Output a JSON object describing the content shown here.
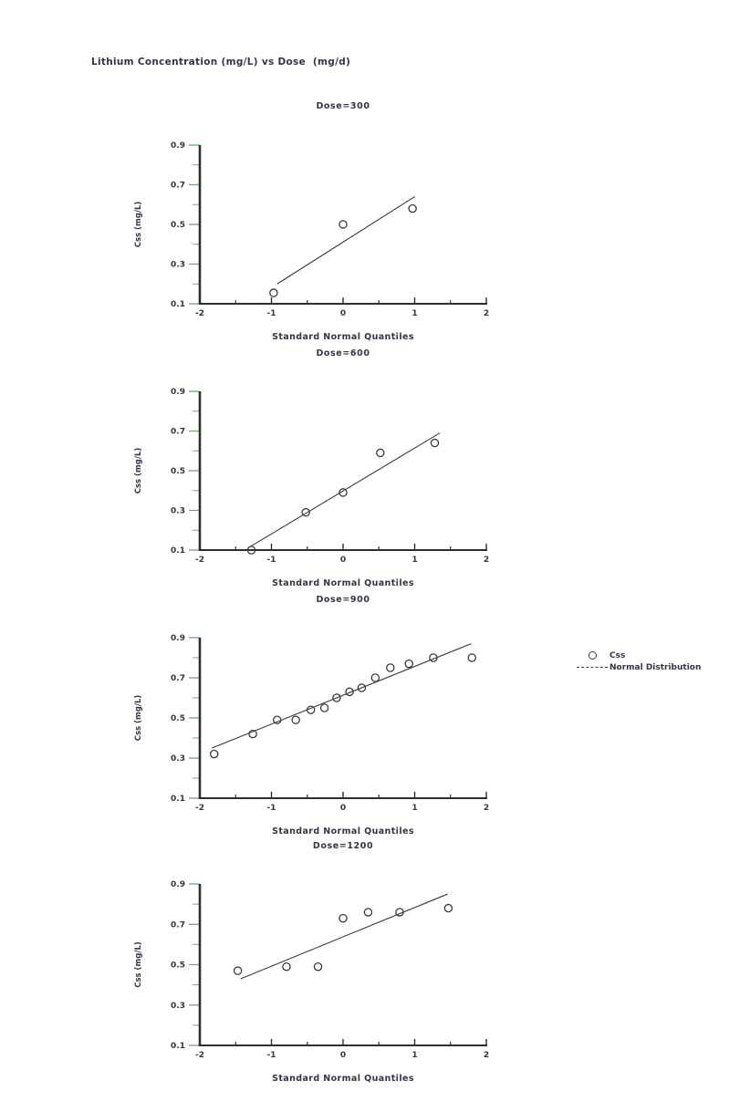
{
  "page": {
    "title": "Lithium Concentration (mg/L) vs Dose  (mg/d)"
  },
  "legend": {
    "items": [
      {
        "marker": "open-circle",
        "label": "Css"
      },
      {
        "marker": "dashed-line",
        "label": "Normal Distribution"
      }
    ]
  },
  "axes": {
    "xlabel": "Standard Normal Quantiles",
    "ylabel": "Css (mg/L)",
    "xlim": [
      -2,
      2
    ],
    "ylim": [
      0.1,
      0.9
    ],
    "xticks": [
      -2,
      -1,
      0,
      1,
      2
    ],
    "xminorticks": [
      -1.5,
      -0.5,
      0.5,
      1.5
    ],
    "yticks": [
      0.9,
      0.7,
      0.5,
      0.3,
      0.1
    ],
    "yminorticks": [
      0.8,
      0.6,
      0.4,
      0.2
    ],
    "grid": false
  },
  "colors": {
    "text": "#34344a",
    "axis_line": "#2e2e2e",
    "y_tick_green": "#74aa74",
    "marker_stroke": "#3a3a3a",
    "fit_line": "#3a3a3a",
    "background": "#ffffff"
  },
  "chart_data": [
    {
      "type": "scatter",
      "title": "Dose=300",
      "xlabel": "Standard Normal Quantiles",
      "ylabel": "Css (mg/L)",
      "xlim": [
        -2,
        2
      ],
      "ylim": [
        0.1,
        0.9
      ],
      "series_name": "Css",
      "points": [
        [
          -0.97,
          0.155
        ],
        [
          0.0,
          0.5
        ],
        [
          0.97,
          0.58
        ]
      ],
      "normal_fit_line": {
        "x": [
          -0.92,
          1.0
        ],
        "y": [
          0.2,
          0.64
        ]
      }
    },
    {
      "type": "scatter",
      "title": "Dose=600",
      "xlabel": "Standard Normal Quantiles",
      "ylabel": "Css (mg/L)",
      "xlim": [
        -2,
        2
      ],
      "ylim": [
        0.1,
        0.9
      ],
      "series_name": "Css",
      "points": [
        [
          -1.28,
          0.1
        ],
        [
          -0.52,
          0.29
        ],
        [
          0.0,
          0.39
        ],
        [
          0.52,
          0.59
        ],
        [
          1.28,
          0.64
        ]
      ],
      "normal_fit_line": {
        "x": [
          -1.33,
          1.35
        ],
        "y": [
          0.11,
          0.69
        ]
      }
    },
    {
      "type": "scatter",
      "title": "Dose=900",
      "xlabel": "Standard Normal Quantiles",
      "ylabel": "Css (mg/L)",
      "xlim": [
        -2,
        2
      ],
      "ylim": [
        0.1,
        0.9
      ],
      "series_name": "Css",
      "points": [
        [
          -1.8,
          0.32
        ],
        [
          -1.26,
          0.42
        ],
        [
          -0.92,
          0.49
        ],
        [
          -0.66,
          0.49
        ],
        [
          -0.45,
          0.54
        ],
        [
          -0.26,
          0.55
        ],
        [
          -0.09,
          0.6
        ],
        [
          0.09,
          0.63
        ],
        [
          0.26,
          0.65
        ],
        [
          0.45,
          0.7
        ],
        [
          0.66,
          0.75
        ],
        [
          0.92,
          0.77
        ],
        [
          1.26,
          0.8
        ],
        [
          1.8,
          0.8
        ]
      ],
      "normal_fit_line": {
        "x": [
          -1.83,
          1.79
        ],
        "y": [
          0.35,
          0.87
        ]
      }
    },
    {
      "type": "scatter",
      "title": "Dose=1200",
      "xlabel": "Standard Normal Quantiles",
      "ylabel": "Css (mg/L)",
      "xlim": [
        -2,
        2
      ],
      "ylim": [
        0.1,
        0.9
      ],
      "series_name": "Css",
      "points": [
        [
          -1.47,
          0.47
        ],
        [
          -0.79,
          0.49
        ],
        [
          -0.35,
          0.49
        ],
        [
          0.0,
          0.73
        ],
        [
          0.35,
          0.76
        ],
        [
          0.79,
          0.76
        ],
        [
          1.47,
          0.78
        ]
      ],
      "normal_fit_line": {
        "x": [
          -1.43,
          1.46
        ],
        "y": [
          0.43,
          0.85
        ]
      }
    }
  ]
}
